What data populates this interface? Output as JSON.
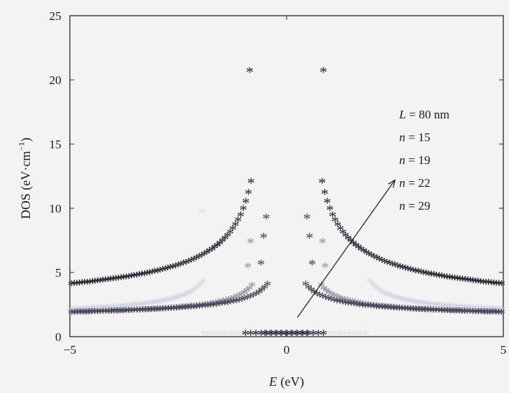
{
  "chart_data": {
    "type": "scatter",
    "xlabel_var": "E",
    "xlabel_unit": "(eV)",
    "ylabel": "DOS (eV·cm",
    "ylabel_sup": "−1",
    "ylabel_close": ")",
    "xlim": [
      -5,
      5
    ],
    "ylim": [
      0,
      25
    ],
    "x_ticks": [
      -5,
      0,
      5
    ],
    "x_tick_labels": [
      "−5",
      "0",
      "5"
    ],
    "y_ticks": [
      0,
      5,
      10,
      15,
      20,
      25
    ],
    "y_tick_labels": [
      "0",
      "5",
      "10",
      "15",
      "20",
      "25"
    ],
    "marker": "*",
    "legend": {
      "entries": [
        {
          "var": "L",
          "rest": " = 80 nm"
        },
        {
          "var": "n",
          "rest": " = 15"
        },
        {
          "var": "n",
          "rest": " = 19"
        },
        {
          "var": "n",
          "rest": " = 22"
        },
        {
          "var": "n",
          "rest": " = 29"
        }
      ]
    },
    "arrow": {
      "from": [
        0.25,
        1.5
      ],
      "to": [
        2.5,
        12.2
      ]
    },
    "series": [
      {
        "color": "#c9cfe0",
        "peak_x": 1.9,
        "peaks": [
          9.6,
          6.1
        ],
        "floor_x": 1.9
      },
      {
        "color": "#8f94a8",
        "peak_x": 0.78,
        "peaks": [
          7.3,
          5.4
        ],
        "floor_x": 0.7
      },
      {
        "color": "#4a4356",
        "peak_x": 0.42,
        "peaks": [
          9.2,
          7.7,
          5.6
        ],
        "floor_x": 0.5
      },
      {
        "color": "#2b2433",
        "peak_x": 0.8,
        "peaks": [
          20.6
        ],
        "floor_x": 0.95
      }
    ]
  }
}
